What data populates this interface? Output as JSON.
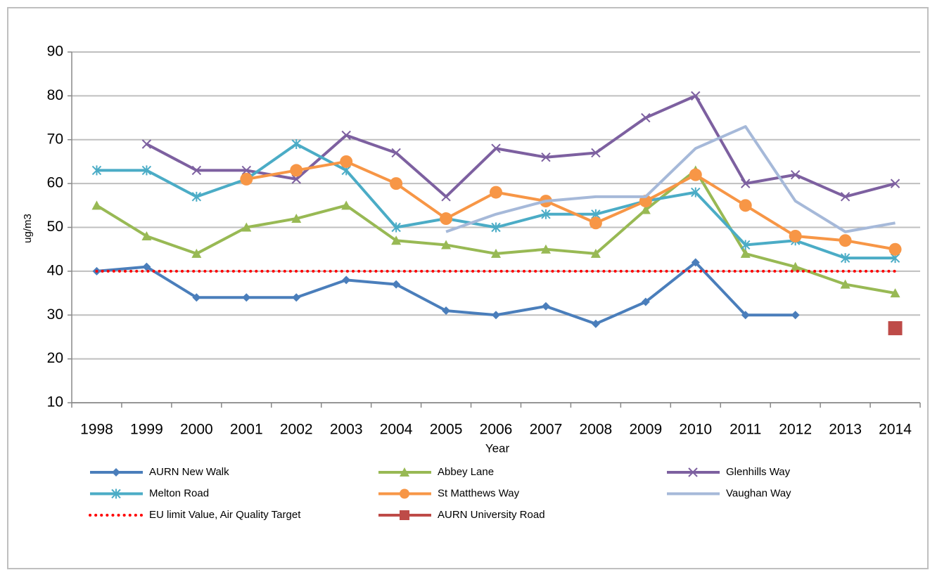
{
  "chart_data": {
    "type": "line",
    "y_label": "ug/m3",
    "x_label": "Year",
    "categories": [
      "1998",
      "1999",
      "2000",
      "2001",
      "2002",
      "2003",
      "2004",
      "2005",
      "2006",
      "2007",
      "2008",
      "2009",
      "2010",
      "2011",
      "2012",
      "2013",
      "2014"
    ],
    "ylim": [
      10,
      90
    ],
    "yticks": [
      10,
      20,
      30,
      40,
      50,
      60,
      70,
      80,
      90
    ],
    "grid": true,
    "series": [
      {
        "name": "AURN New Walk",
        "color": "#4a7ebb",
        "marker": "diamond",
        "values": [
          40,
          41,
          34,
          34,
          34,
          38,
          37,
          31,
          30,
          32,
          28,
          33,
          42,
          30,
          30,
          null,
          null
        ]
      },
      {
        "name": "Abbey Lane",
        "color": "#98b954",
        "marker": "triangle",
        "values": [
          55,
          48,
          44,
          50,
          52,
          55,
          47,
          46,
          44,
          45,
          44,
          54,
          63,
          44,
          41,
          37,
          35
        ]
      },
      {
        "name": "Glenhills Way",
        "color": "#7d60a0",
        "marker": "x",
        "values": [
          null,
          69,
          63,
          63,
          61,
          71,
          67,
          57,
          68,
          66,
          67,
          75,
          80,
          60,
          62,
          57,
          60
        ]
      },
      {
        "name": "Melton Road",
        "color": "#4bacc6",
        "marker": "star",
        "values": [
          63,
          63,
          57,
          61,
          69,
          63,
          50,
          52,
          50,
          53,
          53,
          56,
          58,
          46,
          47,
          43,
          43
        ]
      },
      {
        "name": "St Matthews Way",
        "color": "#f79646",
        "marker": "circle",
        "values": [
          null,
          null,
          null,
          61,
          63,
          65,
          60,
          52,
          58,
          56,
          51,
          56,
          62,
          55,
          48,
          47,
          45
        ]
      },
      {
        "name": "Vaughan Way",
        "color": "#a6b9d9",
        "marker": "none",
        "values": [
          null,
          null,
          null,
          null,
          null,
          null,
          null,
          49,
          53,
          56,
          57,
          57,
          68,
          73,
          56,
          49,
          51
        ]
      },
      {
        "name": "EU limit Value, Air Quality Target",
        "color": "#ff0000",
        "marker": "none",
        "dash": "dotted",
        "values": [
          40,
          40,
          40,
          40,
          40,
          40,
          40,
          40,
          40,
          40,
          40,
          40,
          40,
          40,
          40,
          40,
          40
        ]
      },
      {
        "name": "AURN University Road",
        "color": "#be4b48",
        "marker": "square",
        "values": [
          null,
          null,
          null,
          null,
          null,
          null,
          null,
          null,
          null,
          null,
          null,
          null,
          null,
          null,
          null,
          null,
          27
        ]
      }
    ]
  }
}
